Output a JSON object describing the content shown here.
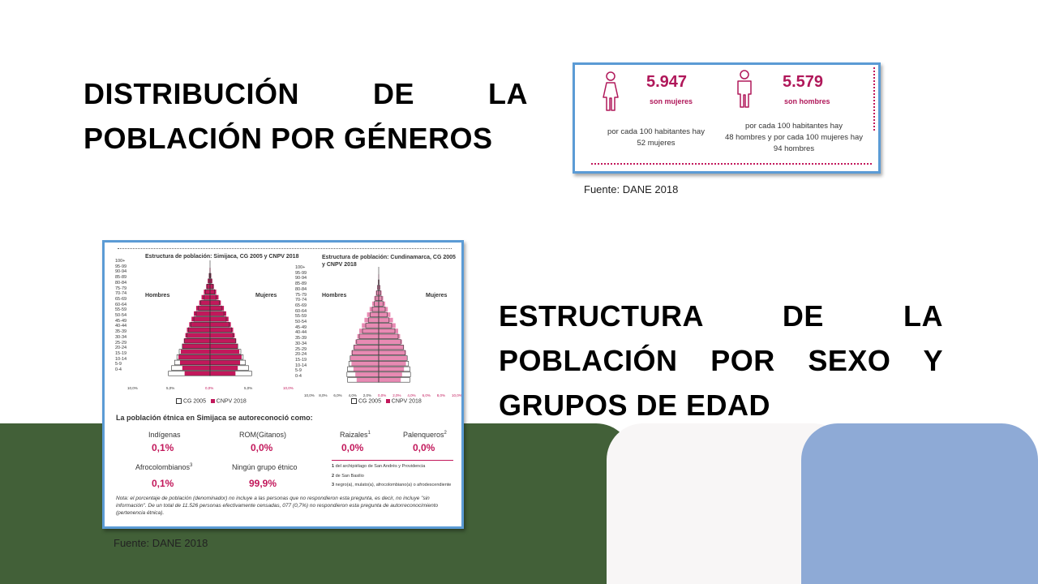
{
  "headings": {
    "genders": [
      "DISTRIBUCIÓN DE LA",
      "POBLACIÓN POR GÉNEROS"
    ],
    "structure": [
      "ESTRUCTURA DE LA",
      "POBLACIÓN POR SEXO Y",
      "GRUPOS DE EDAD"
    ]
  },
  "sources": {
    "top": "Fuente: DANE 2018",
    "bottom": "Fuente: DANE 2018"
  },
  "gender_card": {
    "women_count": "5.947",
    "women_label": "son mujeres",
    "men_count": "5.579",
    "men_label": "son hombres",
    "women_ratio": [
      "por cada 100 habitantes hay",
      "52 mujeres"
    ],
    "men_ratio": [
      "por cada 100 habitantes hay",
      "48 hombres y por cada 100 mujeres hay",
      "94 hombres"
    ],
    "icons": [
      "female-person-icon",
      "male-person-icon"
    ],
    "accent": "#b0185a"
  },
  "census_card": {
    "pyramid_left": {
      "title": "Estructura de población: Simijaca, CG 2005 y CNPV 2018",
      "men": "Hombres",
      "women": "Mujeres",
      "age_groups": [
        "100+",
        "95-99",
        "90-94",
        "85-89",
        "80-84",
        "75-79",
        "70-74",
        "65-69",
        "60-64",
        "55-59",
        "50-54",
        "45-49",
        "40-44",
        "35-39",
        "30-34",
        "25-29",
        "20-24",
        "15-19",
        "10-14",
        "5-9",
        "0-4"
      ],
      "x_ticks": [
        "10,0%",
        "5,0%",
        "0,0%",
        "5,0%",
        "10,0%"
      ],
      "cg2005": [
        0,
        0,
        0.1,
        0.2,
        0.4,
        0.6,
        0.8,
        1.2,
        1.5,
        1.8,
        2.1,
        2.5,
        2.8,
        3.0,
        3.3,
        3.6,
        4.0,
        4.3,
        4.6,
        5.0,
        5.4
      ],
      "cnpv2018": [
        0,
        0.05,
        0.15,
        0.3,
        0.5,
        0.8,
        1.1,
        1.4,
        1.8,
        2.1,
        2.4,
        2.7,
        3.0,
        3.2,
        3.4,
        3.6,
        3.8,
        4.1,
        3.9,
        3.6,
        3.3
      ]
    },
    "pyramid_right": {
      "title": "Estructura de población: Cundinamarca, CG 2005 y CNPV 2018",
      "men": "Hombres",
      "women": "Mujeres",
      "age_groups": [
        "100+",
        "95-99",
        "90-94",
        "85-89",
        "80-84",
        "75-79",
        "70-74",
        "65-69",
        "60-64",
        "55-59",
        "50-54",
        "45-49",
        "40-44",
        "35-39",
        "30-34",
        "25-29",
        "20-24",
        "15-19",
        "10-14",
        "5-9",
        "0-4"
      ],
      "x_ticks": [
        "10,0%",
        "8,0%",
        "6,0%",
        "4,0%",
        "2,0%",
        "0,0%",
        "2,0%",
        "4,0%",
        "6,0%",
        "8,0%",
        "10,0%"
      ],
      "cg2005": [
        0,
        0,
        0.05,
        0.15,
        0.3,
        0.5,
        0.7,
        1.0,
        1.3,
        1.6,
        2.0,
        2.5,
        3.0,
        3.4,
        3.8,
        4.1,
        4.4,
        4.6,
        4.8,
        4.9,
        4.8
      ],
      "cnpv2018": [
        0,
        0.05,
        0.1,
        0.25,
        0.45,
        0.7,
        1.0,
        1.4,
        1.8,
        2.2,
        2.6,
        3.0,
        3.3,
        3.6,
        3.9,
        4.2,
        4.4,
        4.2,
        3.9,
        3.6,
        3.4
      ]
    },
    "legend": {
      "cg2005": "CG 2005",
      "cnpv2018": "CNPV 2018"
    },
    "ethnic_title": "La población étnica en Simijaca se autoreconoció como:",
    "groups": [
      {
        "label": "Indígenas",
        "value": "0,1%"
      },
      {
        "label": "ROM(Gitanos)",
        "value": "0,0%"
      },
      {
        "label": "Raizales",
        "sup": "1",
        "value": "0,0%"
      },
      {
        "label": "Palenqueros",
        "sup": "2",
        "value": "0,0%"
      },
      {
        "label": "Afrocolombianos",
        "sup": "3",
        "value": "0,1%"
      },
      {
        "label": "Ningún grupo étnico",
        "value": "99,9%"
      }
    ],
    "footnotes": [
      {
        "n": "1",
        "text": "del archipiélago de San Andrés y Providencia"
      },
      {
        "n": "2",
        "text": "de San Basilio"
      },
      {
        "n": "3",
        "text": "negro(a), mulato(a), afrocolombiano(a) o afrodescendiente"
      }
    ],
    "note": [
      "Nota: el porcentaje de población (denominador) no incluye a las personas que no respondieron esta pregunta, es decir, no incluye \"sin",
      "información\". De un total de 11.526 personas efectivamente censadas,   077  (0,7%) no respondieron esta pregunta de autorreconocimiento",
      "(pertenencia étnica)."
    ],
    "colors": {
      "cnpv": "#c2185b",
      "cnpv_light": "#e88ab3",
      "cg_outline": "#333333"
    }
  },
  "bands": {
    "green": "#426038",
    "white": "#f8f6f6",
    "blue": "#8eaad6"
  }
}
